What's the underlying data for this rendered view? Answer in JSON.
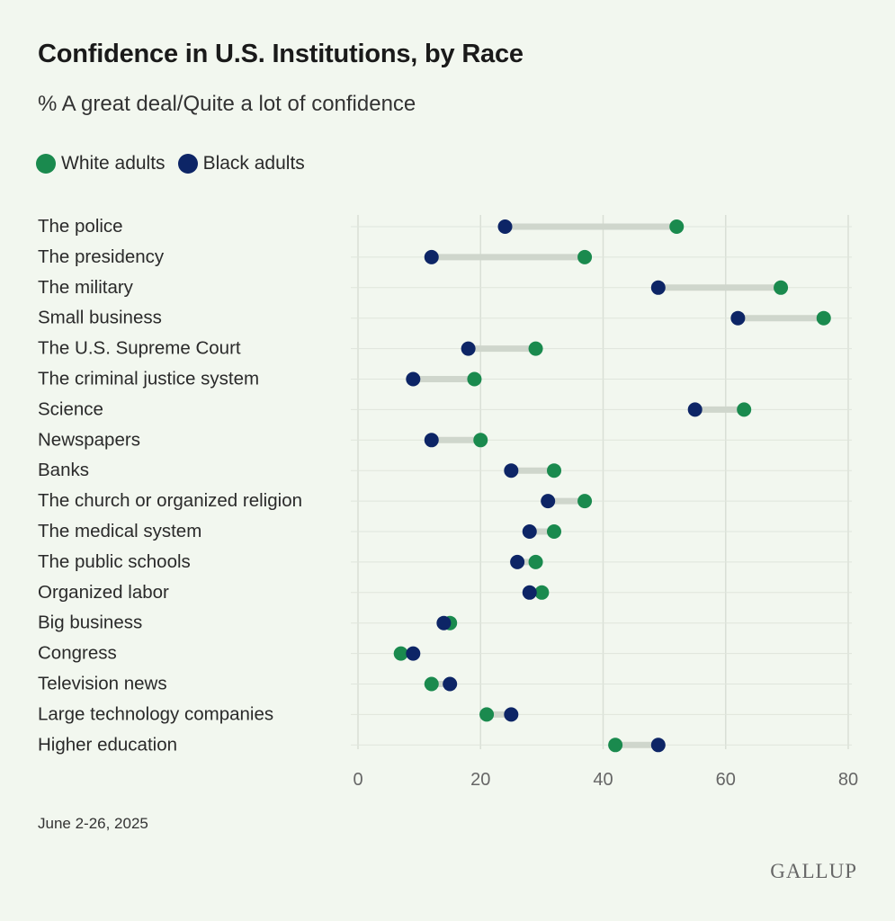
{
  "header": {
    "title": "Confidence in U.S. Institutions, by Race",
    "subtitle": "% A great deal/Quite a lot of confidence"
  },
  "legend": [
    {
      "name": "White adults",
      "color": "#1a8a4e"
    },
    {
      "name": "Black adults",
      "color": "#0d2566"
    }
  ],
  "footer": {
    "date": "June 2-26, 2025",
    "logo": "GALLUP"
  },
  "chart_data": {
    "type": "dumbbell",
    "title": "Confidence in U.S. Institutions, by Race",
    "subtitle": "% A great deal/Quite a lot of confidence",
    "xlim": [
      0,
      80
    ],
    "xticks": [
      0,
      20,
      40,
      60,
      80
    ],
    "grid": true,
    "legend_position": "top-left",
    "categories": [
      "The police",
      "The presidency",
      "The military",
      "Small business",
      "The U.S. Supreme Court",
      "The criminal justice system",
      "Science",
      "Newspapers",
      "Banks",
      "The church or organized religion",
      "The medical system",
      "The public schools",
      "Organized labor",
      "Big business",
      "Congress",
      "Television news",
      "Large technology companies",
      "Higher education"
    ],
    "series": [
      {
        "name": "White adults",
        "color": "#1a8a4e",
        "values": [
          52,
          37,
          69,
          76,
          29,
          19,
          63,
          20,
          32,
          37,
          32,
          29,
          30,
          15,
          7,
          12,
          21,
          42
        ]
      },
      {
        "name": "Black adults",
        "color": "#0d2566",
        "values": [
          24,
          12,
          49,
          62,
          18,
          9,
          55,
          12,
          25,
          31,
          28,
          26,
          28,
          14,
          9,
          15,
          25,
          49
        ]
      }
    ]
  }
}
